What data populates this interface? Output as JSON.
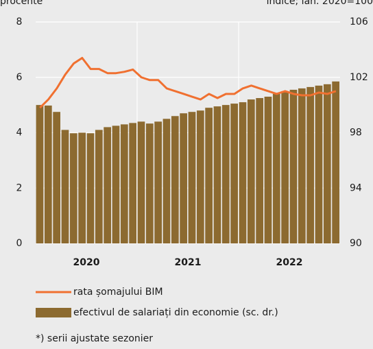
{
  "chart_data": {
    "type": "bar_line",
    "y_label": "procente",
    "y2_label": "indice; ian. 2020=100",
    "categories": [
      null,
      null,
      null,
      null,
      null,
      "2020",
      null,
      null,
      null,
      null,
      null,
      null,
      null,
      null,
      null,
      null,
      null,
      "2021",
      null,
      null,
      null,
      null,
      null,
      null,
      null,
      null,
      null,
      null,
      null,
      "2022",
      null,
      null,
      null,
      null,
      null,
      null
    ],
    "series": [
      {
        "name": "rata șomajului BIM",
        "type": "line",
        "color": "#f07030",
        "axis": "y",
        "values": [
          4.9,
          5.2,
          5.6,
          6.1,
          6.5,
          6.7,
          6.3,
          6.3,
          6.15,
          6.15,
          6.2,
          6.28,
          6.0,
          5.9,
          5.9,
          5.6,
          5.5,
          5.4,
          5.3,
          5.2,
          5.4,
          5.25,
          5.4,
          5.4,
          5.6,
          5.7,
          5.6,
          5.5,
          5.4,
          5.5,
          5.4,
          5.35,
          5.35,
          5.45,
          5.4,
          5.5
        ]
      },
      {
        "name": "efectivul de salariați din economie (sc. dr.)",
        "type": "bar",
        "color": "#8c6a30",
        "axis": "y2",
        "values": [
          100,
          99.96,
          99.5,
          98.2,
          97.96,
          98,
          97.96,
          98.2,
          98.4,
          98.5,
          98.6,
          98.7,
          98.8,
          98.66,
          98.8,
          99,
          99.2,
          99.4,
          99.5,
          99.6,
          99.8,
          99.9,
          100,
          100.1,
          100.2,
          100.4,
          100.5,
          100.6,
          100.8,
          101,
          101.1,
          101.2,
          101.3,
          101.4,
          101.5,
          101.7
        ]
      }
    ],
    "ylim": [
      0,
      8
    ],
    "yticks": [
      0,
      2,
      4,
      6,
      8
    ],
    "y2lim": [
      90,
      106
    ],
    "y2ticks": [
      90,
      94,
      98,
      102,
      106
    ],
    "grid": true,
    "note": "*) serii ajustate sezonier"
  }
}
